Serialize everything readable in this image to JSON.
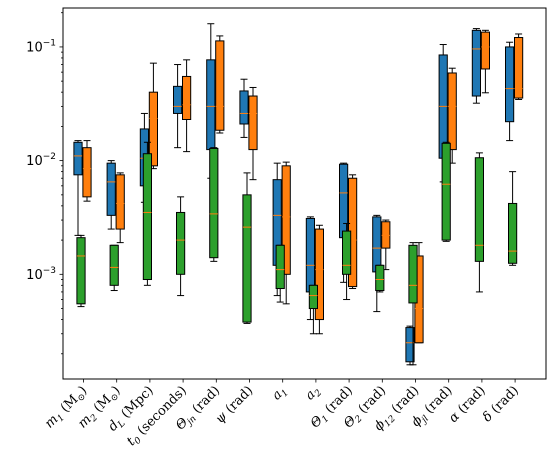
{
  "chart_data": {
    "type": "box",
    "yscale": "log",
    "ylim": [
      0.00012,
      0.22
    ],
    "yticks": [
      {
        "value": 0.001,
        "base": "10",
        "exp": "−3"
      },
      {
        "value": 0.01,
        "base": "10",
        "exp": "−2"
      },
      {
        "value": 0.1,
        "base": "10",
        "exp": "−1"
      }
    ],
    "categories": [
      {
        "main": "m",
        "sub": "1",
        "rest": " (M",
        "sub2": "⊙",
        "end": ")"
      },
      {
        "main": "m",
        "sub": "2",
        "rest": " (M",
        "sub2": "⊙",
        "end": ")"
      },
      {
        "main": "d",
        "sub": "L",
        "rest": " (Mpc)",
        "sub2": "",
        "end": ""
      },
      {
        "main": "t",
        "sub": "0",
        "rest": " (seconds)",
        "sub2": "",
        "end": ""
      },
      {
        "main": "Θ",
        "sub": "jn",
        "rest": " (rad)",
        "sub2": "",
        "end": ""
      },
      {
        "main": "ψ",
        "sub": "",
        "rest": " (rad)",
        "sub2": "",
        "end": ""
      },
      {
        "main": "a",
        "sub": "1",
        "rest": "",
        "sub2": "",
        "end": ""
      },
      {
        "main": "a",
        "sub": "2",
        "rest": "",
        "sub2": "",
        "end": ""
      },
      {
        "main": "Θ",
        "sub": "1",
        "rest": " (rad)",
        "sub2": "",
        "end": ""
      },
      {
        "main": "Θ",
        "sub": "2",
        "rest": " (rad)",
        "sub2": "",
        "end": ""
      },
      {
        "main": "ϕ",
        "sub": "12",
        "rest": " (rad)",
        "sub2": "",
        "end": ""
      },
      {
        "main": "ϕ",
        "sub": "jl",
        "rest": " (rad)",
        "sub2": "",
        "end": ""
      },
      {
        "main": "α",
        "sub": "",
        "rest": " (rad)",
        "sub2": "",
        "end": ""
      },
      {
        "main": "δ",
        "sub": "",
        "rest": " (rad)",
        "sub2": "",
        "end": ""
      }
    ],
    "series": [
      {
        "color": "#1f77b4",
        "boxes": [
          {
            "wl": 0.0022,
            "q1": 0.0075,
            "med": 0.011,
            "q3": 0.0145,
            "wh": 0.015
          },
          {
            "wl": 0.0025,
            "q1": 0.0033,
            "med": 0.0065,
            "q3": 0.0095,
            "wh": 0.01
          },
          {
            "wl": 0.0043,
            "q1": 0.006,
            "med": 0.0105,
            "q3": 0.019,
            "wh": 0.026
          },
          {
            "wl": 0.013,
            "q1": 0.026,
            "med": 0.03,
            "q3": 0.045,
            "wh": 0.07
          },
          {
            "wl": 0.007,
            "q1": 0.0125,
            "med": 0.03,
            "q3": 0.077,
            "wh": 0.16
          },
          {
            "wl": 0.016,
            "q1": 0.021,
            "med": 0.026,
            "q3": 0.041,
            "wh": 0.052
          },
          {
            "wl": 0.00065,
            "q1": 0.0012,
            "med": 0.0033,
            "q3": 0.0068,
            "wh": 0.0095
          },
          {
            "wl": 0.0004,
            "q1": 0.0007,
            "med": 0.0012,
            "q3": 0.0031,
            "wh": 0.0032
          },
          {
            "wl": 0.00085,
            "q1": 0.0021,
            "med": 0.0052,
            "q3": 0.0093,
            "wh": 0.0095
          },
          {
            "wl": 0.00047,
            "q1": 0.00105,
            "med": 0.0017,
            "q3": 0.0032,
            "wh": 0.0033
          },
          {
            "wl": 0.00016,
            "q1": 0.00017,
            "med": 0.00025,
            "q3": 0.00034,
            "wh": 0.00035
          },
          {
            "wl": 0.0065,
            "q1": 0.0105,
            "med": 0.03,
            "q3": 0.085,
            "wh": 0.105
          },
          {
            "wl": 0.032,
            "q1": 0.037,
            "med": 0.096,
            "q3": 0.14,
            "wh": 0.145
          },
          {
            "wl": 0.015,
            "q1": 0.022,
            "med": 0.043,
            "q3": 0.1,
            "wh": 0.11
          }
        ]
      },
      {
        "color": "#ff7f0e",
        "boxes": [
          {
            "wl": 0.0044,
            "q1": 0.0048,
            "med": 0.0085,
            "q3": 0.013,
            "wh": 0.015
          },
          {
            "wl": 0.0019,
            "q1": 0.0025,
            "med": 0.0042,
            "q3": 0.0075,
            "wh": 0.0078
          },
          {
            "wl": 0.0085,
            "q1": 0.009,
            "med": 0.0235,
            "q3": 0.04,
            "wh": 0.072
          },
          {
            "wl": 0.012,
            "q1": 0.023,
            "med": 0.031,
            "q3": 0.055,
            "wh": 0.077
          },
          {
            "wl": 0.0175,
            "q1": 0.0185,
            "med": 0.03,
            "q3": 0.113,
            "wh": 0.125
          },
          {
            "wl": 0.0068,
            "q1": 0.0125,
            "med": 0.026,
            "q3": 0.037,
            "wh": 0.044
          },
          {
            "wl": 0.00055,
            "q1": 0.001,
            "med": 0.0032,
            "q3": 0.009,
            "wh": 0.0097
          },
          {
            "wl": 0.0003,
            "q1": 0.0004,
            "med": 0.0011,
            "q3": 0.0025,
            "wh": 0.0027
          },
          {
            "wl": 0.00075,
            "q1": 0.00078,
            "med": 0.002,
            "q3": 0.007,
            "wh": 0.0075
          },
          {
            "wl": 0.0011,
            "q1": 0.0017,
            "med": 0.0022,
            "q3": 0.0029,
            "wh": 0.003
          },
          {
            "wl": 0.00025,
            "q1": 0.00025,
            "med": 0.0005,
            "q3": 0.00145,
            "wh": 0.0019
          },
          {
            "wl": 0.0095,
            "q1": 0.0125,
            "med": 0.03,
            "q3": 0.059,
            "wh": 0.065
          },
          {
            "wl": 0.0395,
            "q1": 0.064,
            "med": 0.1,
            "q3": 0.135,
            "wh": 0.14
          },
          {
            "wl": 0.0345,
            "q1": 0.0355,
            "med": 0.043,
            "q3": 0.121,
            "wh": 0.13
          }
        ]
      },
      {
        "color": "#2ca02c",
        "boxes": [
          {
            "wl": 0.00052,
            "q1": 0.00055,
            "med": 0.00145,
            "q3": 0.0021,
            "wh": 0.0022
          },
          {
            "wl": 0.00072,
            "q1": 0.0008,
            "med": 0.00115,
            "q3": 0.0018,
            "wh": 0.0018
          },
          {
            "wl": 0.0008,
            "q1": 0.0009,
            "med": 0.0035,
            "q3": 0.0115,
            "wh": 0.0145
          },
          {
            "wl": 0.00065,
            "q1": 0.001,
            "med": 0.002,
            "q3": 0.0035,
            "wh": 0.0048
          },
          {
            "wl": 0.0013,
            "q1": 0.0014,
            "med": 0.0034,
            "q3": 0.0128,
            "wh": 0.013
          },
          {
            "wl": 0.00037,
            "q1": 0.00038,
            "med": 0.0026,
            "q3": 0.005,
            "wh": 0.0078
          },
          {
            "wl": 0.00057,
            "q1": 0.00075,
            "med": 0.0011,
            "q3": 0.0018,
            "wh": 0.0018
          },
          {
            "wl": 0.0003,
            "q1": 0.0005,
            "med": 0.00065,
            "q3": 0.0008,
            "wh": 0.0008
          },
          {
            "wl": 0.0006,
            "q1": 0.001,
            "med": 0.0012,
            "q3": 0.0024,
            "wh": 0.0028
          },
          {
            "wl": 0.0007,
            "q1": 0.00072,
            "med": 0.0009,
            "q3": 0.0012,
            "wh": 0.0012
          },
          {
            "wl": 0.00016,
            "q1": 0.00056,
            "med": 0.0008,
            "q3": 0.0018,
            "wh": 0.0019
          },
          {
            "wl": 0.00195,
            "q1": 0.002,
            "med": 0.0062,
            "q3": 0.0142,
            "wh": 0.0145
          },
          {
            "wl": 0.0007,
            "q1": 0.0013,
            "med": 0.0018,
            "q3": 0.0106,
            "wh": 0.0117
          },
          {
            "wl": 0.0012,
            "q1": 0.00125,
            "med": 0.0016,
            "q3": 0.0042,
            "wh": 0.008
          }
        ]
      }
    ],
    "median_color": "#ff7f0e",
    "grid": false,
    "legend": "none"
  }
}
